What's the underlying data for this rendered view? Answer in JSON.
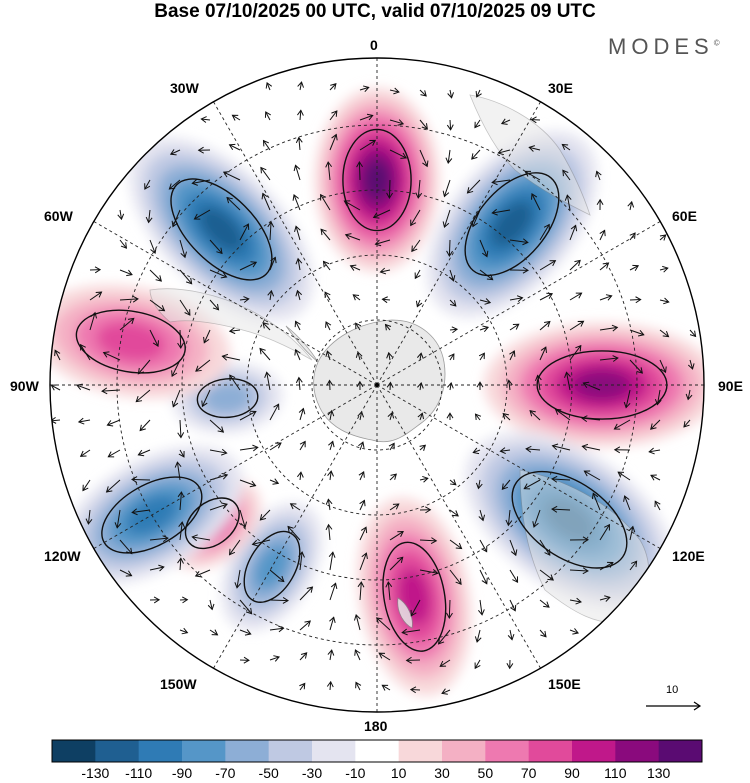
{
  "title": "Base 07/10/2025 00 UTC, valid 07/10/2025 09 UTC",
  "brand": "MODES",
  "brand_mark": "©",
  "longitude_labels": {
    "top": "0",
    "top_right": "30E",
    "right_upper": "60E",
    "right": "90E",
    "right_lower": "120E",
    "bottom_right": "150E",
    "bottom": "180",
    "bottom_left": "150W",
    "left_lower": "120W",
    "left": "90W",
    "left_upper": "60W",
    "top_left": "30W"
  },
  "reference_vector_label": "10",
  "colorbar": {
    "ticks": [
      "-130",
      "-110",
      "-90",
      "-70",
      "-50",
      "-30",
      "-10",
      "10",
      "30",
      "50",
      "70",
      "90",
      "110",
      "130"
    ],
    "colors": [
      "#0e3f63",
      "#1f5f91",
      "#2f7bb5",
      "#5596c8",
      "#8daed6",
      "#bfc9e3",
      "#e4e4f0",
      "#ffffff",
      "#f8d8da",
      "#f4b0c4",
      "#ee79b0",
      "#e14a9b",
      "#c0188a",
      "#8a0a7d",
      "#5a0b72"
    ]
  },
  "chart_data": {
    "type": "map",
    "projection": "south polar stereographic",
    "field": "anomaly (shaded) with wind vectors",
    "value_range": [
      -130,
      130
    ],
    "features": [
      {
        "name": "positive-center-0",
        "longitude": "0",
        "peak": 130
      },
      {
        "name": "negative-center-40E",
        "longitude": "40E",
        "peak": -110
      },
      {
        "name": "positive-center-90E",
        "longitude": "90E",
        "peak": 110
      },
      {
        "name": "negative-center-125E",
        "longitude": "125E",
        "peak": -110
      },
      {
        "name": "positive-center-170E",
        "longitude": "170E",
        "peak": 90
      },
      {
        "name": "negative-center-150W",
        "longitude": "150W",
        "peak": -70
      },
      {
        "name": "positive-center-130W",
        "longitude": "130W",
        "peak": 70
      },
      {
        "name": "negative-center-120W",
        "longitude": "120W",
        "peak": -90
      },
      {
        "name": "negative-center-95W",
        "longitude": "95W",
        "peak": -50
      },
      {
        "name": "positive-center-80W",
        "longitude": "80W",
        "peak": 70
      },
      {
        "name": "negative-center-45W",
        "longitude": "45W",
        "peak": -110
      }
    ]
  }
}
